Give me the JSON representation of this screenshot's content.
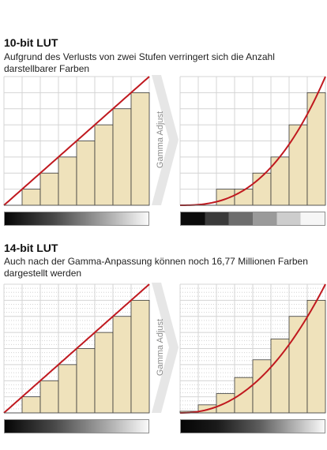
{
  "colors": {
    "bar_fill": "#efe2bb",
    "bar_stroke": "#3a3a3a",
    "curve": "#c0191f",
    "grid": "#d4d4d4",
    "arrow": "#e6e6e6",
    "gamma_label": "#8c8c8c"
  },
  "sections": [
    {
      "title": "10-bit LUT",
      "description": "Aufgrund des Verlusts von zwei Stufen verringert sich die Anzahl darstellbarer Farben",
      "arrow_label": "Gamma Adjust",
      "left_chart": {
        "type": "bar",
        "steps": 8,
        "values": [
          0,
          1,
          2,
          3,
          4,
          5,
          6,
          7
        ],
        "curve": "linear"
      },
      "right_chart": {
        "type": "bar",
        "steps": 8,
        "values": [
          0,
          0,
          1,
          1,
          2,
          3,
          5,
          7
        ],
        "curve": "gamma",
        "gamma": 2.6
      },
      "left_gradient": "continuous",
      "right_gradient_bands": [
        "#0b0b0b",
        "#3a3a3a",
        "#6d6d6d",
        "#9a9a9a",
        "#cdcdcd",
        "#f6f6f6"
      ]
    },
    {
      "title": "14-bit LUT",
      "description": "Auch nach der Gamma-Anpassung können noch 16,77 Millionen Farben dargestellt werden",
      "arrow_label": "Gamma Adjust",
      "left_chart": {
        "type": "bar",
        "steps": 8,
        "values": [
          0,
          1,
          2,
          3,
          4,
          5,
          6,
          7
        ],
        "curve": "linear"
      },
      "right_chart": {
        "type": "bar",
        "steps": 8,
        "values": [
          0.1,
          0.5,
          1.2,
          2.2,
          3.3,
          4.6,
          6.0,
          7.0
        ],
        "curve": "gamma",
        "gamma": 2.2
      },
      "left_gradient": "continuous",
      "right_gradient": "continuous"
    }
  ]
}
